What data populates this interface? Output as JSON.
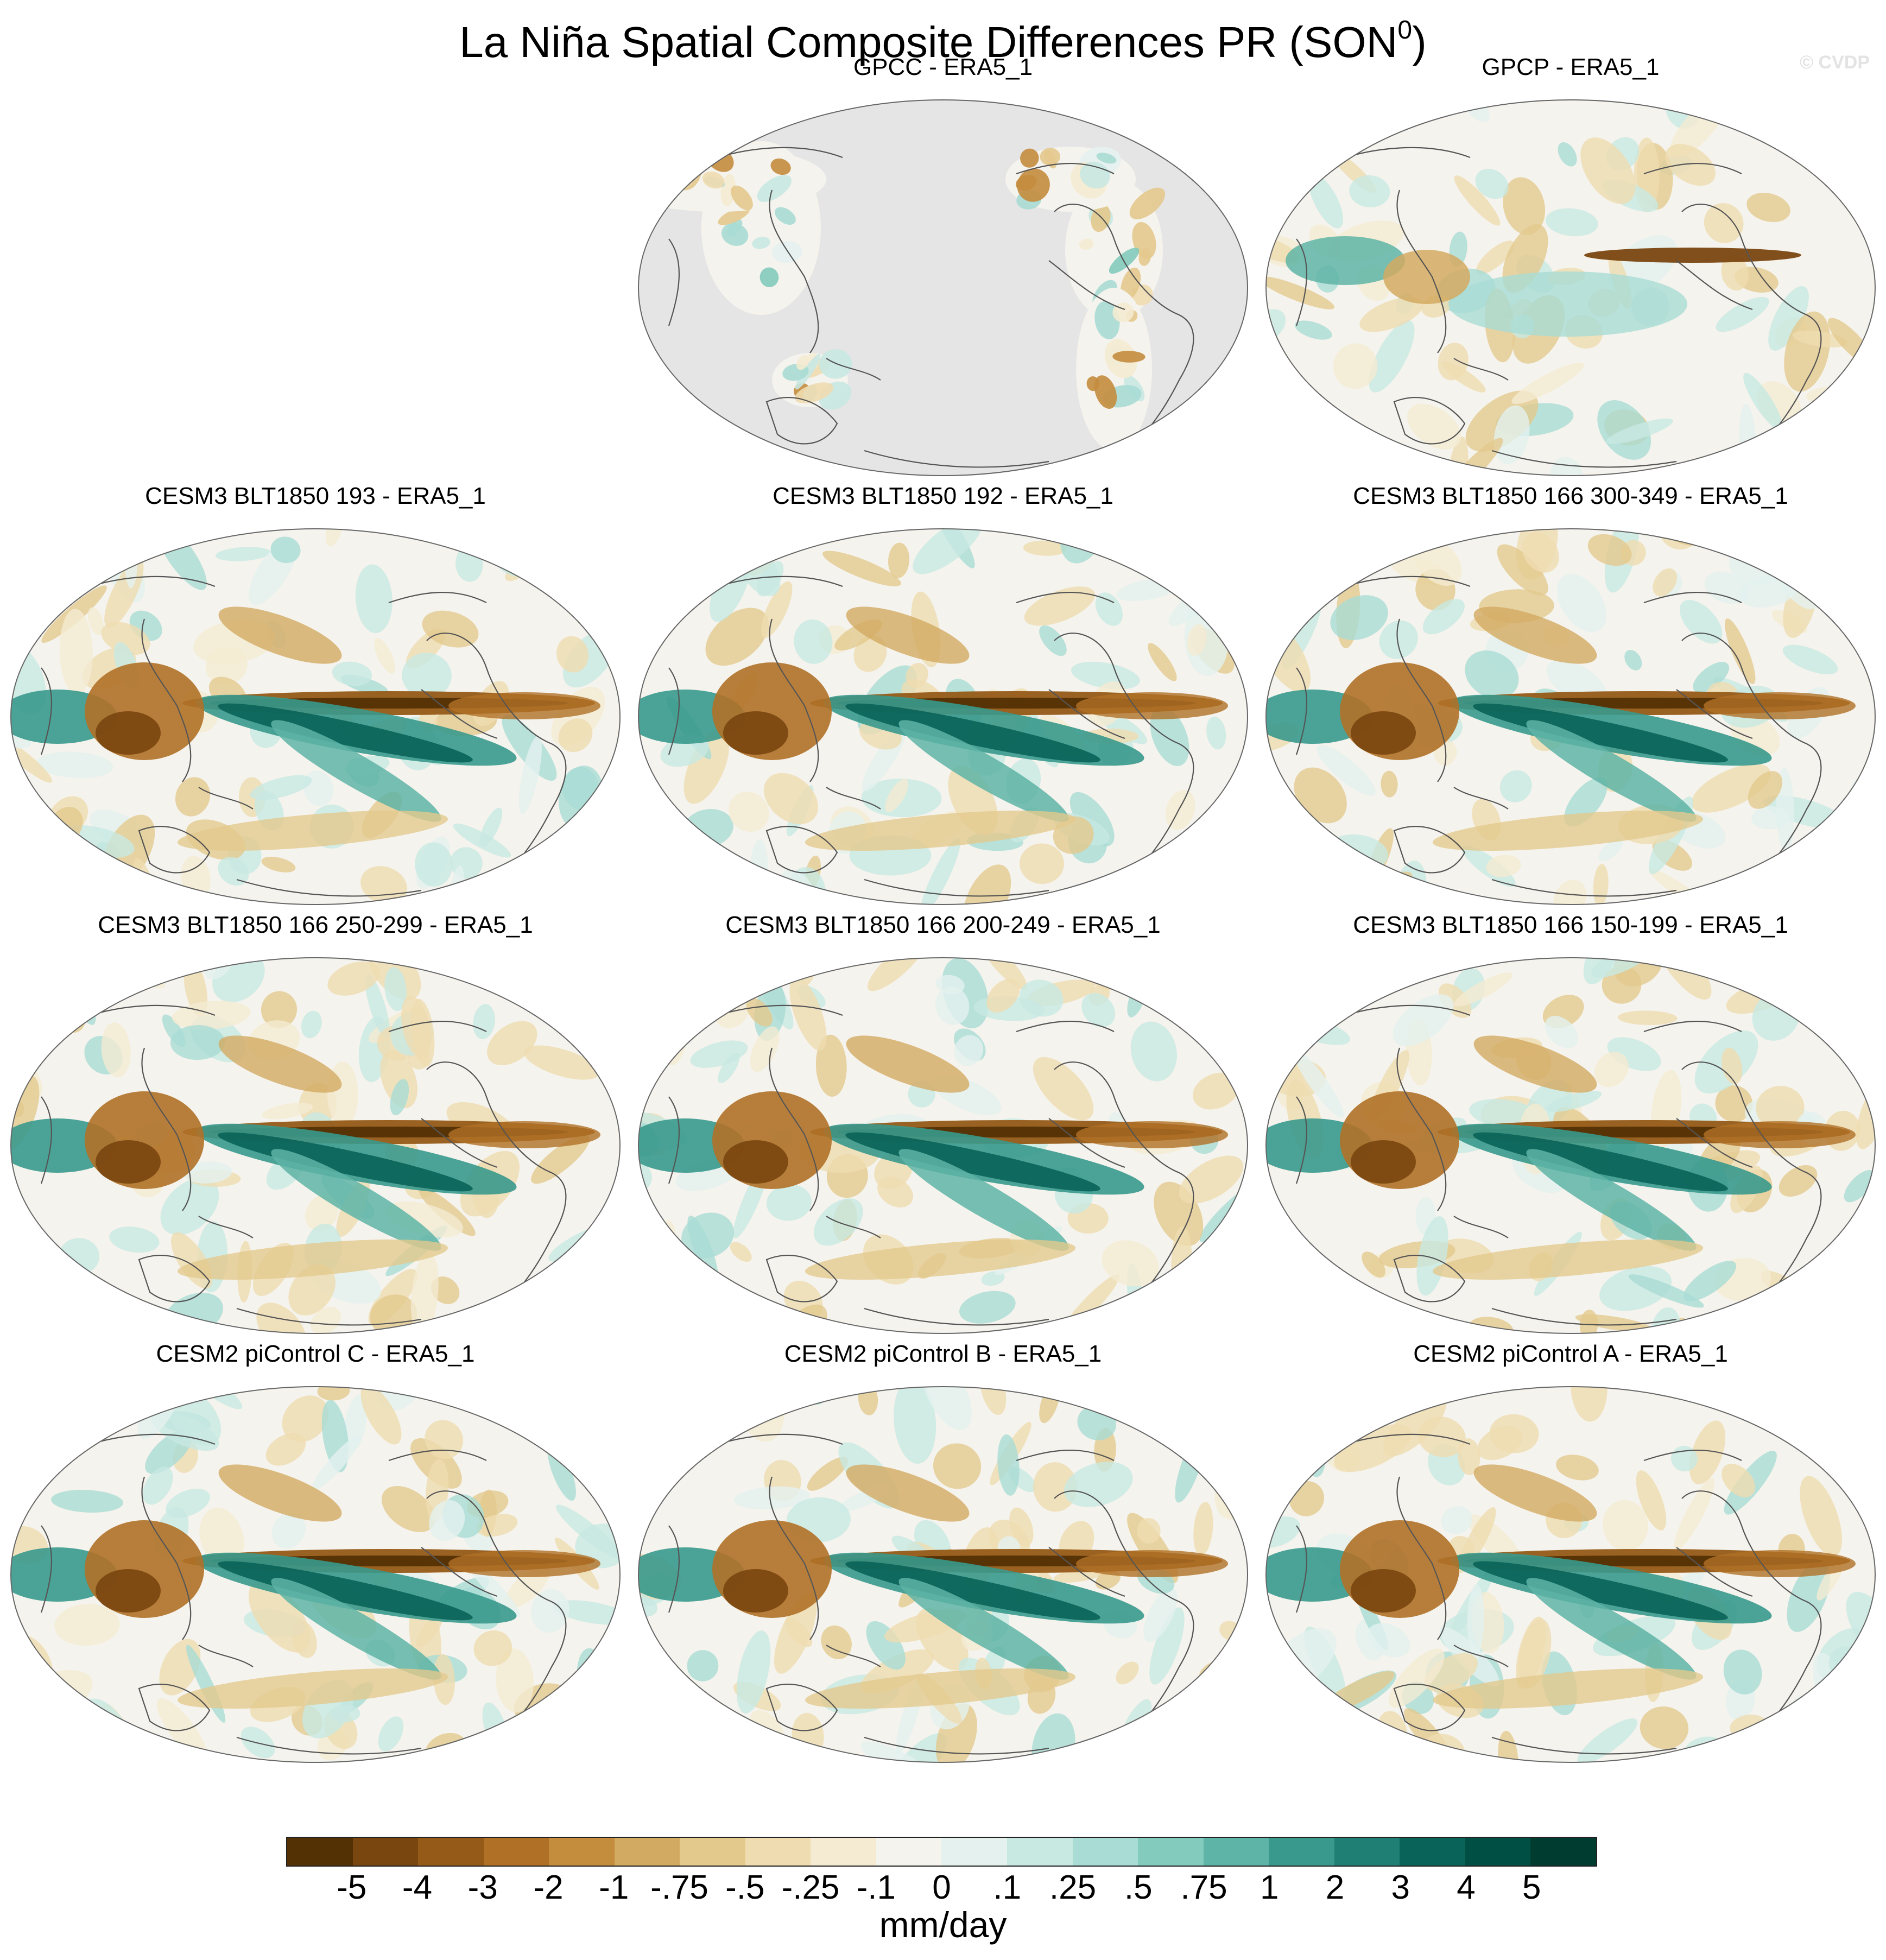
{
  "title": {
    "text": "La Niña Spatial Composite Differences PR (SON",
    "superscript": "0",
    "suffix": ")"
  },
  "watermark": "© CVDP",
  "panels": [
    {
      "title": "GPCC - ERA5_1",
      "style": "land-only",
      "ocean_color": "#e5e5e5"
    },
    {
      "title": "GPCP - ERA5_1",
      "style": "obs"
    },
    {
      "title": "CESM3 BLT1850 193 - ERA5_1",
      "style": "model"
    },
    {
      "title": "CESM3 BLT1850 192 - ERA5_1",
      "style": "model"
    },
    {
      "title": "CESM3 BLT1850 166 300-349 - ERA5_1",
      "style": "model"
    },
    {
      "title": "CESM3 BLT1850 166 250-299 - ERA5_1",
      "style": "model"
    },
    {
      "title": "CESM3 BLT1850 166 200-249 - ERA5_1",
      "style": "model"
    },
    {
      "title": "CESM3 BLT1850 166 150-199 - ERA5_1",
      "style": "model"
    },
    {
      "title": "CESM2 piControl C - ERA5_1",
      "style": "model"
    },
    {
      "title": "CESM2 piControl B - ERA5_1",
      "style": "model"
    },
    {
      "title": "CESM2 piControl A - ERA5_1",
      "style": "model"
    }
  ],
  "colorbar": {
    "labels": [
      "-5",
      "-4",
      "-3",
      "-2",
      "-1",
      "-.75",
      "-.5",
      "-.25",
      "-.1",
      "0",
      ".1",
      ".25",
      ".5",
      ".75",
      "1",
      "2",
      "3",
      "4",
      "5"
    ],
    "colors": [
      "#543005",
      "#7a4610",
      "#955a17",
      "#b07127",
      "#c48c3d",
      "#d3aa61",
      "#e4c98d",
      "#efdcb0",
      "#f4ebd2",
      "#f5f3ed",
      "#e4f1ef",
      "#c8e8e2",
      "#a9dcd4",
      "#83cbbd",
      "#5eb4a6",
      "#38998c",
      "#207f74",
      "#0a6358",
      "#004f44",
      "#003c30"
    ],
    "units": "mm/day"
  }
}
